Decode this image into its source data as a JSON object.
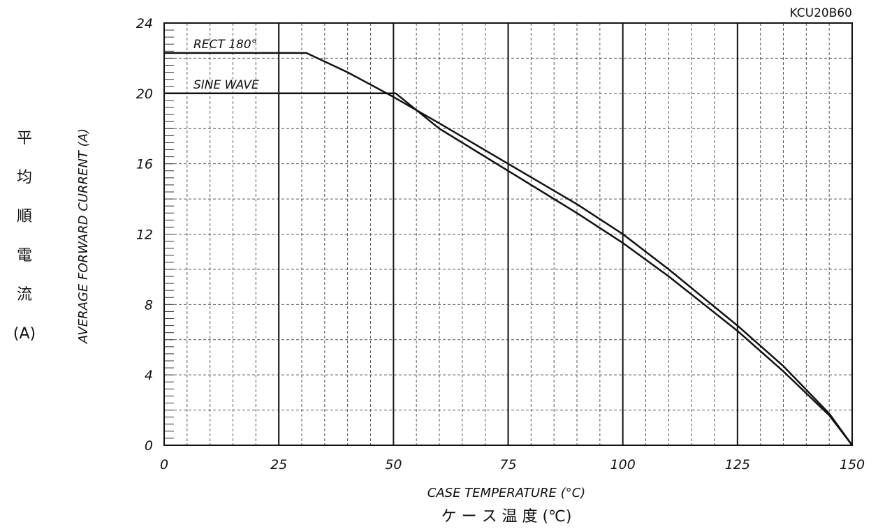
{
  "chart_data": {
    "type": "line",
    "model": "KCU20B60",
    "xlabel": "CASE TEMPERATURE (°C)",
    "xlabel_jp": "ケ ー ス 温 度 (℃)",
    "ylabel": "AVERAGE FORWARD CURRENT (A)",
    "ylabel_jp": [
      "平",
      "均",
      "順",
      "電",
      "流",
      "(A)"
    ],
    "xlim": [
      0,
      150
    ],
    "ylim": [
      0,
      24
    ],
    "x_ticks": [
      "0",
      "25",
      "50",
      "75",
      "100",
      "125",
      "150"
    ],
    "y_ticks": [
      "0",
      "4",
      "8",
      "12",
      "16",
      "20",
      "24"
    ],
    "grid": true,
    "series": [
      {
        "name": "RECT 180°",
        "points": [
          [
            0,
            22.3
          ],
          [
            31,
            22.3
          ],
          [
            40,
            21.2
          ],
          [
            50,
            19.8
          ],
          [
            60,
            18.3
          ],
          [
            75,
            16.0
          ],
          [
            90,
            13.7
          ],
          [
            100,
            12.0
          ],
          [
            110,
            10.0
          ],
          [
            125,
            6.8
          ],
          [
            135,
            4.5
          ],
          [
            145,
            1.8
          ],
          [
            150,
            0
          ]
        ]
      },
      {
        "name": "SINE WAVE",
        "points": [
          [
            0,
            20.0
          ],
          [
            50.5,
            20.0
          ],
          [
            60,
            18.0
          ],
          [
            75,
            15.6
          ],
          [
            90,
            13.2
          ],
          [
            100,
            11.5
          ],
          [
            110,
            9.6
          ],
          [
            125,
            6.5
          ],
          [
            135,
            4.2
          ],
          [
            145,
            1.7
          ],
          [
            150,
            0
          ]
        ]
      }
    ]
  }
}
